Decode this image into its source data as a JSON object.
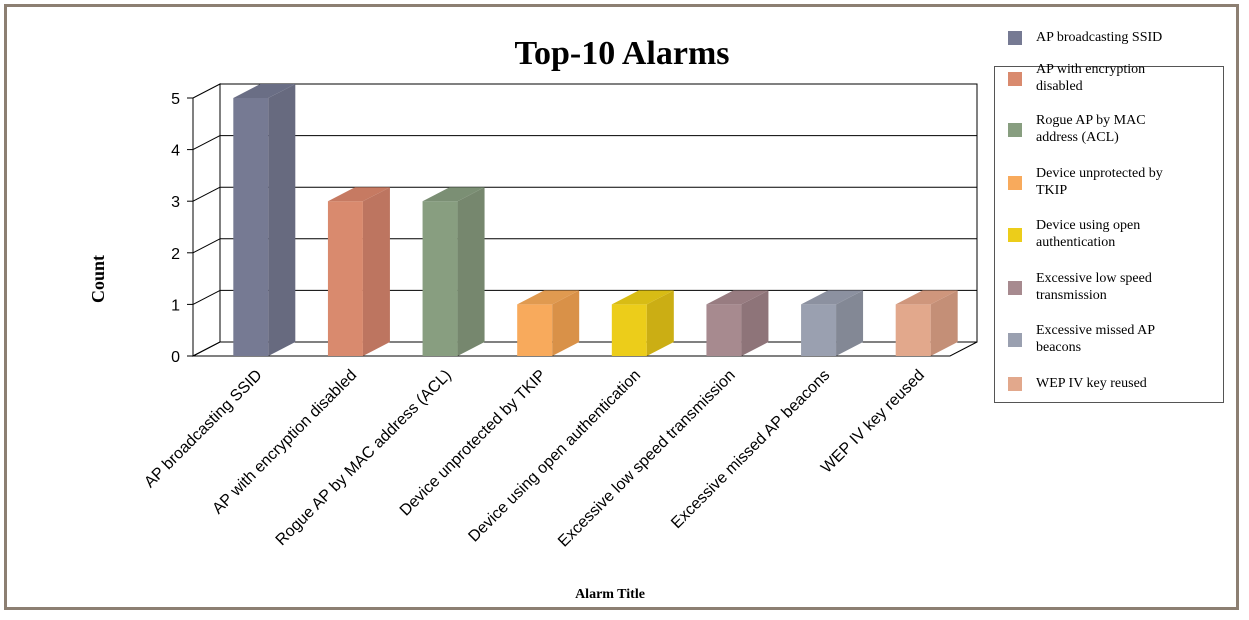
{
  "chart_data": {
    "type": "bar",
    "title": "Top-10 Alarms",
    "xlabel": "Alarm Title",
    "ylabel": "Count",
    "ylim": [
      0,
      5
    ],
    "yticks": [
      0,
      1,
      2,
      3,
      4,
      5
    ],
    "grid": true,
    "legend_position": "right",
    "categories": [
      "AP broadcasting SSID",
      "AP with encryption disabled",
      "Rogue AP by MAC address (ACL)",
      "Device unprotected by TKIP",
      "Device using open authentication",
      "Excessive low speed transmission",
      "Excessive missed AP beacons",
      "WEP IV key reused"
    ],
    "values": [
      5,
      3,
      3,
      1,
      1,
      1,
      1,
      1
    ],
    "colors": [
      "#767a93",
      "#d98a6e",
      "#889e80",
      "#f8aa5c",
      "#eccd1a",
      "#a78a8f",
      "#9aa0b0",
      "#e2a88c"
    ],
    "side_colors": [
      "#676a7f",
      "#bd7560",
      "#76876e",
      "#d99148",
      "#cbae14",
      "#8e7479",
      "#838895",
      "#c48f77"
    ],
    "top_colors": [
      "#6a6e85",
      "#c67a62",
      "#7b8f74",
      "#e09a50",
      "#d8bc15",
      "#987c81",
      "#8c91a0",
      "#cf967c"
    ],
    "legend": [
      "AP broadcasting SSID",
      "AP with encryption disabled",
      "Rogue AP by MAC address (ACL)",
      "Device unprotected by TKIP",
      "Device using open authentication",
      "Excessive low speed transmission",
      "Excessive missed AP beacons",
      "WEP IV key reused"
    ],
    "legend_display": [
      [
        "AP broadcasting SSID"
      ],
      [
        "AP with encryption",
        "disabled"
      ],
      [
        "Rogue AP by MAC",
        "address (ACL)"
      ],
      [
        "Device unprotected by",
        "TKIP"
      ],
      [
        "Device using open",
        "authentication"
      ],
      [
        "Excessive low speed",
        "transmission"
      ],
      [
        "Excessive missed AP",
        "beacons"
      ],
      [
        "WEP IV key reused"
      ]
    ]
  }
}
